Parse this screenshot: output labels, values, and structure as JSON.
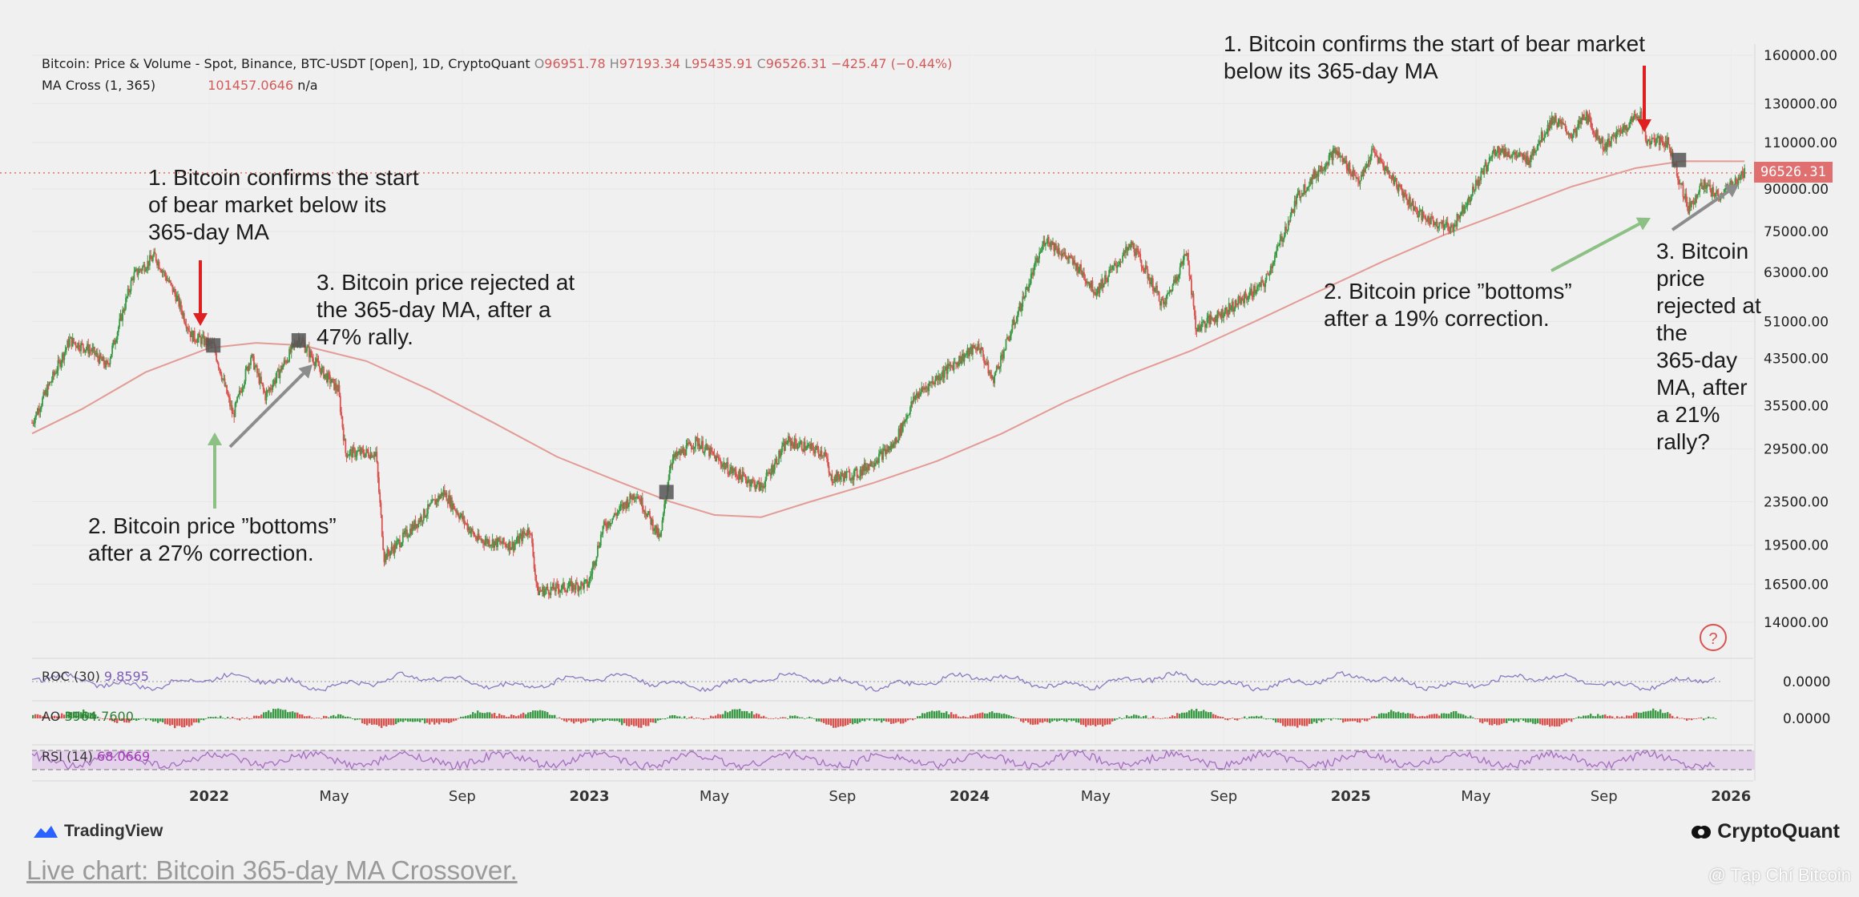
{
  "header": {
    "line1_symbol": "Bitcoin: Price & Volume - Spot, Binance, BTC-USDT [Open], 1D, CryptoQuant",
    "o_label": "O",
    "o_value": "96951.78",
    "h_label": "H",
    "h_value": "97193.34",
    "l_label": "L",
    "l_value": "95435.91",
    "c_label": "C",
    "c_value": "96526.31",
    "change": "−425.47 (−0.44%)",
    "line2_label": "MA Cross (1, 365)",
    "line2_value": "101457.0646",
    "line2_na": "n/a"
  },
  "annotations": {
    "left_1": "1. Bitcoin confirms the start\nof bear market below its\n365-day MA",
    "left_2": "2. Bitcoin price ”bottoms”\nafter a 27% correction.",
    "left_3": "3. Bitcoin price rejected at\nthe 365-day MA, after a\n47% rally.",
    "right_1": "1. Bitcoin confirms the start of bear market\nbelow its 365-day MA",
    "right_2": "2. Bitcoin price ”bottoms”\nafter a 19% correction.",
    "right_3": "3. Bitcoin\nprice\nrejected at\nthe\n365-day\nMA, after\na 21%\nrally?"
  },
  "indicators": {
    "roc_label": "ROC (30)",
    "roc_value": "9.8595",
    "ao_label": "AO",
    "ao_value": "3964.7600",
    "rsi_label": "RSI (14)",
    "rsi_value": "68.0669"
  },
  "price_tag": "96526.31",
  "help_glyph": "?",
  "footer": {
    "link_text": "Live chart: Bitcoin 365-day MA Crossover.",
    "link_tail": ".",
    "tradingview": "TradingView",
    "cryptoquant": "CryptoQuant",
    "watermark": "@ Tạp Chí Bitcoin"
  },
  "colors": {
    "up": "#3b9a45",
    "down": "#d9534f",
    "ma": "#e39b95",
    "roc": "#8a79c0",
    "rsi": "#a470bd",
    "arrow_red": "#e02020",
    "arrow_green": "#8cc084",
    "arrow_gray": "#8c8c8c"
  },
  "chart_data": {
    "type": "line",
    "scale": "log",
    "ylim": [
      12500,
      165000
    ],
    "y_ticks": [
      "160000.00",
      "130000.00",
      "110000.00",
      "90000.00",
      "75000.00",
      "63000.00",
      "51000.00",
      "43500.00",
      "35500.00",
      "29500.00",
      "23500.00",
      "19500.00",
      "16500.00",
      "14000.00"
    ],
    "x_ticks": [
      "2022",
      "May",
      "Sep",
      "2023",
      "May",
      "Sep",
      "2024",
      "May",
      "Sep",
      "2025",
      "May",
      "Sep",
      "2026"
    ],
    "x_dates": [
      "2021-07-15",
      "2026-01-20"
    ],
    "series": [
      {
        "points": [
          [
            "2021-07-15",
            33000
          ],
          [
            "2021-08-20",
            47000
          ],
          [
            "2021-09-10",
            45000
          ],
          [
            "2021-09-25",
            42000
          ],
          [
            "2021-10-20",
            62000
          ],
          [
            "2021-11-10",
            67500
          ],
          [
            "2021-11-30",
            57000
          ],
          [
            "2021-12-15",
            48000
          ],
          [
            "2022-01-05",
            46000
          ],
          [
            "2022-01-24",
            34000
          ],
          [
            "2022-02-10",
            44000
          ],
          [
            "2022-02-24",
            37000
          ],
          [
            "2022-03-28",
            47500
          ],
          [
            "2022-04-20",
            41000
          ],
          [
            "2022-05-05",
            38000
          ],
          [
            "2022-05-12",
            29000
          ],
          [
            "2022-06-10",
            29000
          ],
          [
            "2022-06-18",
            18500
          ],
          [
            "2022-07-05",
            20000
          ],
          [
            "2022-08-14",
            24500
          ],
          [
            "2022-09-15",
            20000
          ],
          [
            "2022-10-20",
            19500
          ],
          [
            "2022-11-05",
            21000
          ],
          [
            "2022-11-12",
            16000
          ],
          [
            "2022-12-31",
            16500
          ],
          [
            "2023-01-14",
            21000
          ],
          [
            "2023-02-15",
            24500
          ],
          [
            "2023-03-10",
            20000
          ],
          [
            "2023-03-20",
            28000
          ],
          [
            "2023-04-14",
            30500
          ],
          [
            "2023-05-15",
            27000
          ],
          [
            "2023-06-15",
            25000
          ],
          [
            "2023-07-10",
            30500
          ],
          [
            "2023-08-15",
            29000
          ],
          [
            "2023-08-20",
            26000
          ],
          [
            "2023-09-15",
            26500
          ],
          [
            "2023-10-20",
            30000
          ],
          [
            "2023-11-10",
            37000
          ],
          [
            "2023-12-20",
            43000
          ],
          [
            "2024-01-10",
            46000
          ],
          [
            "2024-01-23",
            39500
          ],
          [
            "2024-02-15",
            52000
          ],
          [
            "2024-03-14",
            73000
          ],
          [
            "2024-04-15",
            64000
          ],
          [
            "2024-05-01",
            58000
          ],
          [
            "2024-06-05",
            71000
          ],
          [
            "2024-07-05",
            54500
          ],
          [
            "2024-07-28",
            69000
          ],
          [
            "2024-08-05",
            49500
          ],
          [
            "2024-09-07",
            54000
          ],
          [
            "2024-10-10",
            60000
          ],
          [
            "2024-11-12",
            88000
          ],
          [
            "2024-12-17",
            106000
          ],
          [
            "2025-01-10",
            93000
          ],
          [
            "2025-01-22",
            106000
          ],
          [
            "2025-02-25",
            86000
          ],
          [
            "2025-03-10",
            80000
          ],
          [
            "2025-04-08",
            76000
          ],
          [
            "2025-05-20",
            107000
          ],
          [
            "2025-06-20",
            102000
          ],
          [
            "2025-07-14",
            122000
          ],
          [
            "2025-08-02",
            113000
          ],
          [
            "2025-08-14",
            124000
          ],
          [
            "2025-09-01",
            108000
          ],
          [
            "2025-10-06",
            125000
          ],
          [
            "2025-10-11",
            111000
          ],
          [
            "2025-11-01",
            110000
          ],
          [
            "2025-11-21",
            83000
          ],
          [
            "2025-12-05",
            92000
          ],
          [
            "2025-12-20",
            87000
          ],
          [
            "2026-01-05",
            93000
          ],
          [
            "2026-01-14",
            96526.31
          ]
        ]
      },
      {
        "name": "MA Cross (1, 365)",
        "points": [
          [
            "2021-07-15",
            31500
          ],
          [
            "2021-09-01",
            35000
          ],
          [
            "2021-11-01",
            41000
          ],
          [
            "2022-01-01",
            45500
          ],
          [
            "2022-02-15",
            46500
          ],
          [
            "2022-04-01",
            46000
          ],
          [
            "2022-06-01",
            43000
          ],
          [
            "2022-08-01",
            38000
          ],
          [
            "2022-10-01",
            33000
          ],
          [
            "2022-12-01",
            28500
          ],
          [
            "2023-02-01",
            25500
          ],
          [
            "2023-03-20",
            23500
          ],
          [
            "2023-05-01",
            22200
          ],
          [
            "2023-06-15",
            22000
          ],
          [
            "2023-08-01",
            23500
          ],
          [
            "2023-10-01",
            25500
          ],
          [
            "2023-12-01",
            28000
          ],
          [
            "2024-02-01",
            31500
          ],
          [
            "2024-04-01",
            36000
          ],
          [
            "2024-06-01",
            40500
          ],
          [
            "2024-08-01",
            45000
          ],
          [
            "2024-10-01",
            51000
          ],
          [
            "2024-12-01",
            58000
          ],
          [
            "2025-02-01",
            66000
          ],
          [
            "2025-04-01",
            74000
          ],
          [
            "2025-06-01",
            82000
          ],
          [
            "2025-08-01",
            91000
          ],
          [
            "2025-10-01",
            98500
          ],
          [
            "2025-11-15",
            101500
          ],
          [
            "2026-01-14",
            101457.06
          ]
        ]
      }
    ],
    "crossovers": [
      [
        "2022-01-05",
        46000
      ],
      [
        "2022-03-28",
        47000
      ],
      [
        "2023-03-16",
        24500
      ],
      [
        "2025-11-12",
        102000
      ]
    ]
  }
}
